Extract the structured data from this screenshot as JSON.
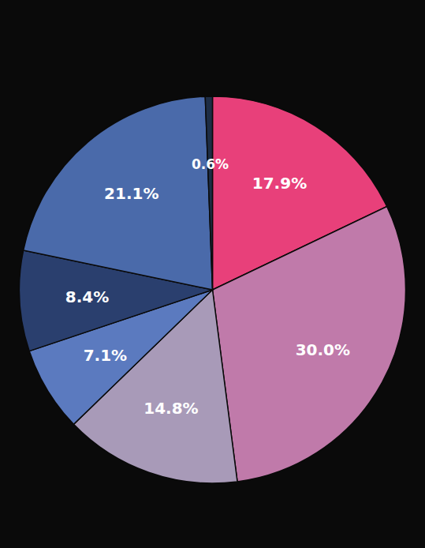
{
  "chart_data": {
    "type": "pie",
    "values": [
      17.9,
      30.0,
      14.8,
      7.1,
      8.4,
      21.1,
      0.6
    ],
    "value_labels": [
      "17.9%",
      "30.0%",
      "14.8%",
      "7.1%",
      "8.4%",
      "21.1%",
      "0.6%"
    ],
    "colors": [
      "#e8407a",
      "#c07aaa",
      "#a89ab8",
      "#5b7abf",
      "#2a3f6e",
      "#4a6aaa",
      "#1e2d45"
    ],
    "data_labels": true
  }
}
